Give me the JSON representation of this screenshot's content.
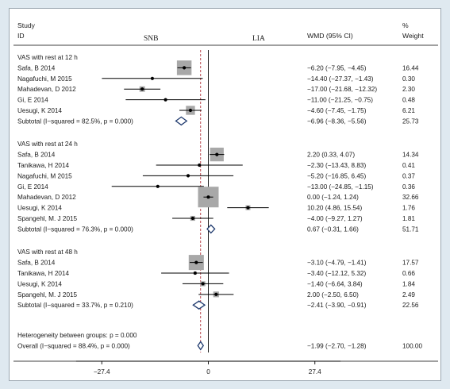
{
  "header": {
    "study_line1": "Study",
    "study_line2": "ID",
    "left_label": "SNB",
    "right_label": "LIA",
    "wmd": "WMD (95% CI)",
    "weight_line1": "%",
    "weight_line2": "Weight"
  },
  "chart_data": {
    "type": "forest",
    "xlim": [
      -35,
      35
    ],
    "xticks": [
      {
        "value": -27.4,
        "label": "-27.4"
      },
      {
        "value": 0,
        "label": "0"
      },
      {
        "value": 27.4,
        "label": "27.4"
      }
    ],
    "overall_effect": -1.99,
    "groups": [
      {
        "title": "VAS with rest at 12 h",
        "studies": [
          {
            "name": "Safa, B 2014",
            "est": -6.2,
            "lo": -7.95,
            "hi": -4.45,
            "ci": "−6.20 (−7.95, −4.45)",
            "weight": "16.44"
          },
          {
            "name": "Nagafuchi, M 2015",
            "est": -14.4,
            "lo": -27.37,
            "hi": -1.43,
            "ci": "−14.40 (−27.37, −1.43)",
            "weight": "0.30"
          },
          {
            "name": "Mahadevan, D 2012",
            "est": -17.0,
            "lo": -21.68,
            "hi": -12.32,
            "ci": "−17.00 (−21.68, −12.32)",
            "weight": "2.30"
          },
          {
            "name": "Gi, E 2014",
            "est": -11.0,
            "lo": -21.25,
            "hi": -0.75,
            "ci": "−11.00 (−21.25, −0.75)",
            "weight": "0.48"
          },
          {
            "name": "Uesugi, K 2014",
            "est": -4.6,
            "lo": -7.45,
            "hi": -1.75,
            "ci": "−4.60 (−7.45, −1.75)",
            "weight": "6.21"
          }
        ],
        "subtotal": {
          "label": "Subtotal  (I−squared = 82.5%, p = 0.000)",
          "est": -6.96,
          "lo": -8.36,
          "hi": -5.56,
          "ci": "−6.96 (−8.36, −5.56)",
          "weight": "25.73"
        }
      },
      {
        "title": "VAS with rest at 24 h",
        "studies": [
          {
            "name": "Safa, B 2014",
            "est": 2.2,
            "lo": 0.33,
            "hi": 4.07,
            "ci": "2.20 (0.33, 4.07)",
            "weight": "14.34"
          },
          {
            "name": "Tanikawa, H 2014",
            "est": -2.3,
            "lo": -13.43,
            "hi": 8.83,
            "ci": "−2.30 (−13.43, 8.83)",
            "weight": "0.41"
          },
          {
            "name": "Nagafuchi, M 2015",
            "est": -5.2,
            "lo": -16.85,
            "hi": 6.45,
            "ci": "−5.20 (−16.85, 6.45)",
            "weight": "0.37"
          },
          {
            "name": "Gi, E 2014",
            "est": -13.0,
            "lo": -24.85,
            "hi": -1.15,
            "ci": "−13.00 (−24.85, −1.15)",
            "weight": "0.36"
          },
          {
            "name": "Mahadevan, D 2012",
            "est": 0.0,
            "lo": -1.24,
            "hi": 1.24,
            "ci": "0.00 (−1.24, 1.24)",
            "weight": "32.66"
          },
          {
            "name": "Uesugi, K 2014",
            "est": 10.2,
            "lo": 4.86,
            "hi": 15.54,
            "ci": "10.20 (4.86, 15.54)",
            "weight": "1.76"
          },
          {
            "name": "Spangehl, M. J 2015",
            "est": -4.0,
            "lo": -9.27,
            "hi": 1.27,
            "ci": "−4.00 (−9.27, 1.27)",
            "weight": "1.81"
          }
        ],
        "subtotal": {
          "label": "Subtotal  (I−squared = 76.3%, p = 0.000)",
          "est": 0.67,
          "lo": -0.31,
          "hi": 1.66,
          "ci": "0.67 (−0.31, 1.66)",
          "weight": "51.71"
        }
      },
      {
        "title": "VAS with rest at 48 h",
        "studies": [
          {
            "name": "Safa, B 2014",
            "est": -3.1,
            "lo": -4.79,
            "hi": -1.41,
            "ci": "−3.10 (−4.79, −1.41)",
            "weight": "17.57"
          },
          {
            "name": "Tanikawa, H 2014",
            "est": -3.4,
            "lo": -12.12,
            "hi": 5.32,
            "ci": "−3.40 (−12.12, 5.32)",
            "weight": "0.66"
          },
          {
            "name": "Uesugi, K 2014",
            "est": -1.4,
            "lo": -6.64,
            "hi": 3.84,
            "ci": "−1.40 (−6.64, 3.84)",
            "weight": "1.84"
          },
          {
            "name": "Spangehl, M. J 2015",
            "est": 2.0,
            "lo": -2.5,
            "hi": 6.5,
            "ci": "2.00 (−2.50, 6.50)",
            "weight": "2.49"
          }
        ],
        "subtotal": {
          "label": "Subtotal  (I−squared = 33.7%, p = 0.210)",
          "est": -2.41,
          "lo": -3.9,
          "hi": -0.91,
          "ci": "−2.41 (−3.90, −0.91)",
          "weight": "22.56"
        }
      }
    ],
    "heterogeneity": "Heterogeneity between groups: p = 0.000",
    "overall": {
      "label": "Overall  (I−squared = 88.4%, p = 0.000)",
      "est": -1.99,
      "lo": -2.7,
      "hi": -1.28,
      "ci": "−1.99 (−2.70, −1.28)",
      "weight": "100.00"
    },
    "colors": {
      "frame": "#dfe9f0",
      "box": "#a8a8a8",
      "diamond": "#1f3a6e",
      "overall_line": "#b0303a",
      "line": "#000000"
    }
  }
}
